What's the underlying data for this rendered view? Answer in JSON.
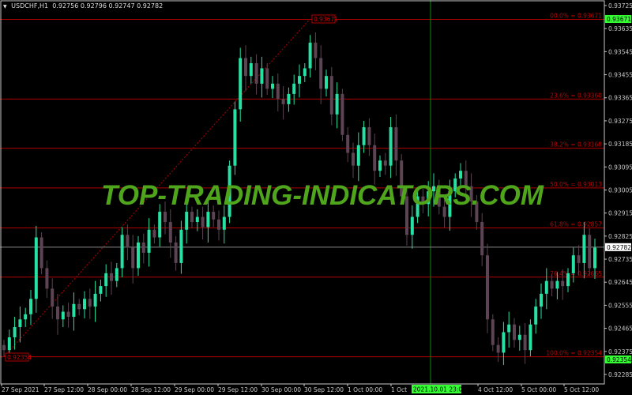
{
  "header": {
    "symbol": "USDCHF,H1",
    "ohlc": "0.92756 0.92796 0.92747 0.92782"
  },
  "watermark": "TOP-TRADING-INDICATORS.COM",
  "colors": {
    "background": "#000000",
    "bull": "#26e0a4",
    "bear": "#5c4454",
    "fib": "#b00000",
    "axis": "#c8c8c8",
    "highlight": "#33ff33",
    "watermark": "#4fa61c"
  },
  "price_axis": {
    "labels": [
      "0.93725",
      "0.93635",
      "0.93545",
      "0.93455",
      "0.93365",
      "0.93275",
      "0.93185",
      "0.93095",
      "0.93005",
      "0.92915",
      "0.92825",
      "0.92735",
      "0.92645",
      "0.92555",
      "0.92465",
      "0.92375",
      "0.92285"
    ],
    "current_price": "0.92782",
    "fib_high_tag": "0.93671",
    "fib_low_tag": "0.92354"
  },
  "time_axis": {
    "labels": [
      "27 Sep 2021",
      "27 Sep 12:00",
      "28 Sep 00:00",
      "28 Sep 12:00",
      "29 Sep 00:00",
      "29 Sep 12:00",
      "30 Sep 00:00",
      "30 Sep 12:00",
      "1 Oct 00:00",
      "1 Oct",
      "4 Oct 12:00",
      "5 Oct 00:00",
      "5 Oct 12:00"
    ],
    "crosshair_time": "2021.10.01 23:00"
  },
  "fibonacci": [
    {
      "label": "00.0% = 0.93671",
      "price": 0.93671
    },
    {
      "label": "23.6% = 0.93360",
      "price": 0.9336
    },
    {
      "label": "38.2% = 0.93168",
      "price": 0.93168
    },
    {
      "label": "50.0% = 0.93013",
      "price": 0.93013
    },
    {
      "label": "61.8% = 0.92857",
      "price": 0.92857
    },
    {
      "label": "76.4% = 0.92665",
      "price": 0.92665
    },
    {
      "label": "100.0% = 0.92354",
      "price": 0.92354
    }
  ],
  "fib_anchor_labels": {
    "high": "0.93671",
    "low": "0.92354"
  },
  "chart_data": {
    "type": "candlestick",
    "symbol": "USDCHF",
    "timeframe": "H1",
    "ylim": [
      0.9223,
      0.9375
    ],
    "open_first": 0.924,
    "close": [
      0.9238,
      0.9243,
      0.9247,
      0.925,
      0.9252,
      0.9258,
      0.9282,
      0.927,
      0.9262,
      0.9255,
      0.925,
      0.9253,
      0.9251,
      0.9256,
      0.9254,
      0.9258,
      0.9255,
      0.926,
      0.9263,
      0.9268,
      0.9265,
      0.927,
      0.9283,
      0.9278,
      0.927,
      0.928,
      0.9276,
      0.9285,
      0.9282,
      0.9292,
      0.9288,
      0.928,
      0.9272,
      0.9285,
      0.9292,
      0.9288,
      0.929,
      0.9286,
      0.9292,
      0.9289,
      0.9285,
      0.929,
      0.931,
      0.9332,
      0.9352,
      0.9345,
      0.935,
      0.9342,
      0.9348,
      0.934,
      0.9342,
      0.9336,
      0.9334,
      0.9338,
      0.9342,
      0.9345,
      0.9348,
      0.9358,
      0.9352,
      0.934,
      0.9345,
      0.933,
      0.9338,
      0.9322,
      0.9315,
      0.931,
      0.9318,
      0.9325,
      0.9318,
      0.9308,
      0.9312,
      0.931,
      0.9325,
      0.9312,
      0.9298,
      0.9283,
      0.929,
      0.9298,
      0.9295,
      0.93,
      0.9302,
      0.9294,
      0.929,
      0.93,
      0.9305,
      0.9308,
      0.9302,
      0.9296,
      0.9288,
      0.9275,
      0.925,
      0.924,
      0.9237,
      0.9245,
      0.9248,
      0.9242,
      0.9244,
      0.9238,
      0.9248,
      0.9255,
      0.926,
      0.9265,
      0.9262,
      0.9265,
      0.9263,
      0.9268,
      0.9275,
      0.9272,
      0.9283,
      0.927,
      0.9278
    ]
  }
}
